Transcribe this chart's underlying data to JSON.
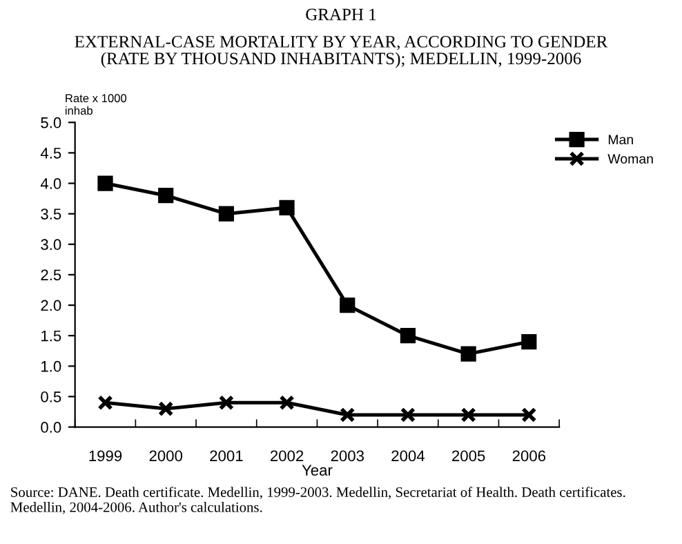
{
  "chart_data": {
    "type": "line",
    "title": "GRAPH 1",
    "subtitle": "EXTERNAL-CASE MORTALITY BY YEAR, ACCORDING TO GENDER\n(RATE BY THOUSAND INHABITANTS); MEDELLIN, 1999-2006",
    "xlabel": "Year",
    "ylabel": "Rate x 1000\ninhab",
    "categories": [
      "1999",
      "2000",
      "2001",
      "2002",
      "2003",
      "2004",
      "2005",
      "2006"
    ],
    "series": [
      {
        "name": "Man",
        "color": "#000000",
        "marker": "square",
        "values": [
          4.0,
          3.8,
          3.5,
          3.6,
          2.0,
          1.5,
          1.2,
          1.4
        ]
      },
      {
        "name": "Woman",
        "color": "#000000",
        "marker": "cross",
        "values": [
          0.4,
          0.3,
          0.4,
          0.4,
          0.2,
          0.2,
          0.2,
          0.2
        ]
      }
    ],
    "ylim": [
      0,
      5
    ],
    "yticks": [
      {
        "value": 0,
        "label": "0.0"
      },
      0.5,
      {
        "value": 1,
        "label": "1.0"
      },
      1.5,
      {
        "value": 2,
        "label": "2.0"
      },
      2.5,
      {
        "value": 3,
        "label": "3.0"
      },
      3.5,
      {
        "value": 4,
        "label": "4.0"
      },
      4.5,
      {
        "value": 5,
        "label": "5.0"
      }
    ],
    "grid": false,
    "legend": "top right",
    "line_style": "solid",
    "annotations": [
      "Source: DANE. Death certificate. Medellin, 1999-2003. Medellin, Secretariat of Health. Death certificates. Medellin, 2004-2006. Author's calculations."
    ]
  }
}
